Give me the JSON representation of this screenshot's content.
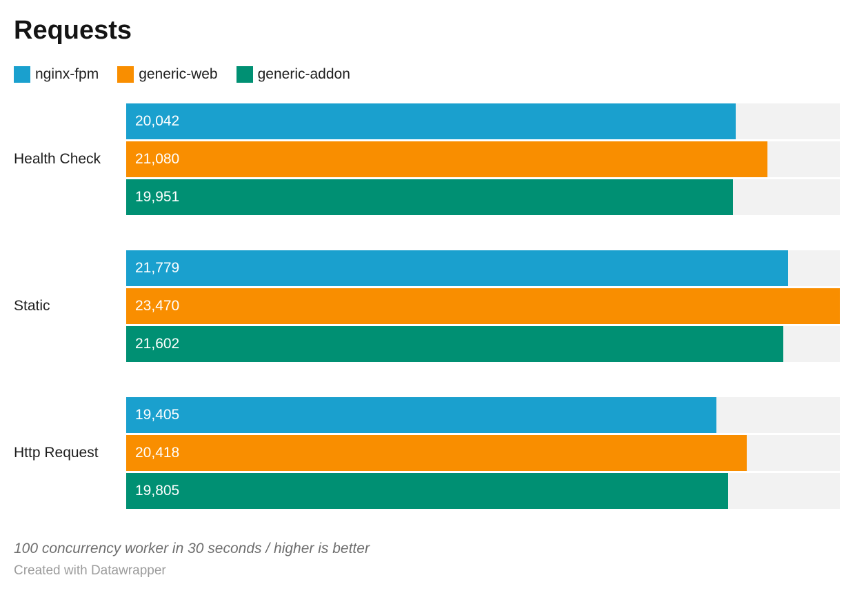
{
  "title": "Requests",
  "legend": {
    "items": [
      {
        "label": "nginx-fpm",
        "color": "#1aa0ce"
      },
      {
        "label": "generic-web",
        "color": "#f98e00"
      },
      {
        "label": "generic-addon",
        "color": "#009073"
      }
    ]
  },
  "chart_data": {
    "type": "bar",
    "orientation": "horizontal",
    "title": "Requests",
    "categories": [
      "Health Check",
      "Static",
      "Http Request"
    ],
    "series": [
      {
        "name": "nginx-fpm",
        "color": "#1aa0ce",
        "values": [
          20042,
          21779,
          19405
        ],
        "labels": [
          "20,042",
          "21,779",
          "19,405"
        ]
      },
      {
        "name": "generic-web",
        "color": "#f98e00",
        "values": [
          21080,
          23470,
          20418
        ],
        "labels": [
          "21,080",
          "23,470",
          "20,418"
        ]
      },
      {
        "name": "generic-addon",
        "color": "#009073",
        "values": [
          19951,
          21602,
          19805
        ],
        "labels": [
          "19,951",
          "21,602",
          "19,805"
        ]
      }
    ],
    "xlim": [
      0,
      23470
    ],
    "grid": false,
    "legend_position": "top",
    "value_labels_position": "inside-start",
    "track_color": "#f2f2f2"
  },
  "footer": {
    "note": "100 concurrency worker in 30 seconds / higher is better",
    "attribution": "Created with Datawrapper"
  }
}
